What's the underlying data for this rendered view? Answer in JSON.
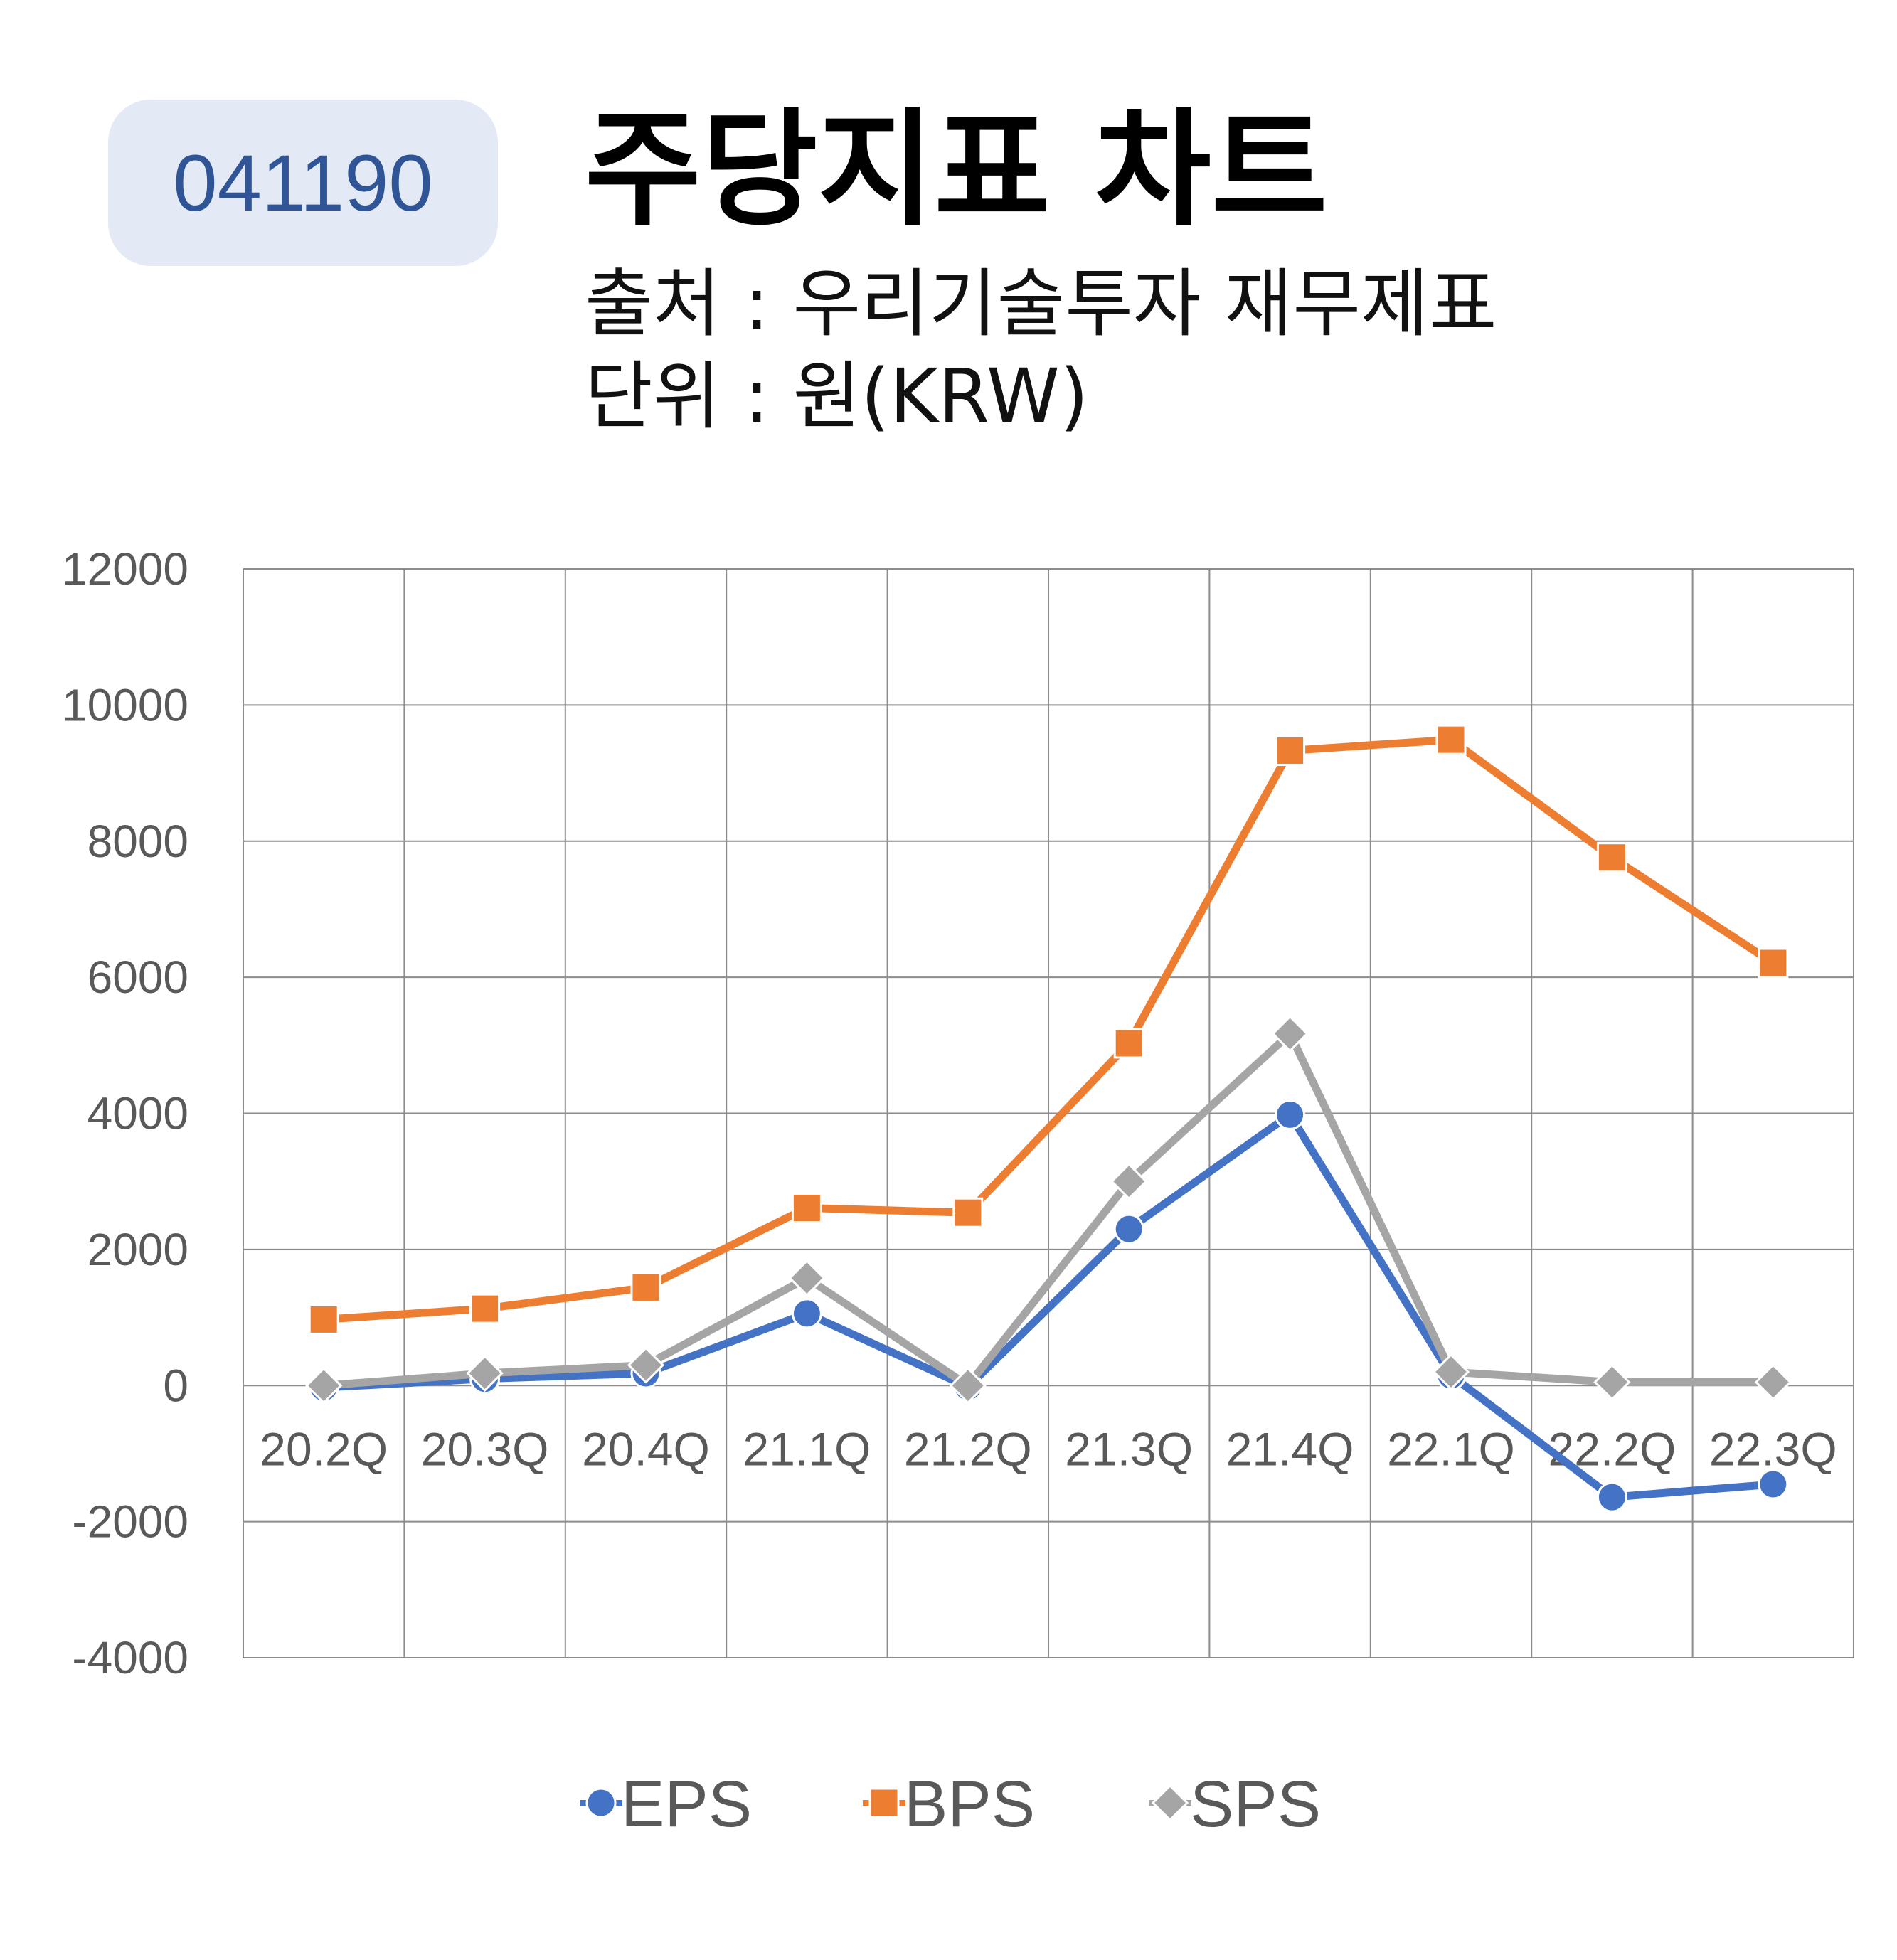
{
  "badge": {
    "code": "041190"
  },
  "header": {
    "title": "주당지표 차트",
    "source": "출처 : 우리기술투자 재무제표",
    "unit": "단위 : 원(KRW)"
  },
  "colors": {
    "EPS": "#4472c4",
    "BPS": "#ed7d31",
    "SPS": "#a5a5a5",
    "badge_bg": "#e3e9f5",
    "badge_text": "#2f5597"
  },
  "chart_data": {
    "type": "line",
    "categories": [
      "20.2Q",
      "20.3Q",
      "20.4Q",
      "21.1Q",
      "21.2Q",
      "21.3Q",
      "21.4Q",
      "22.1Q",
      "22.2Q",
      "22.3Q"
    ],
    "series": [
      {
        "name": "EPS",
        "marker": "circle",
        "values": [
          -30,
          100,
          180,
          1060,
          -20,
          2300,
          3980,
          150,
          -1640,
          -1450
        ]
      },
      {
        "name": "BPS",
        "marker": "square",
        "values": [
          970,
          1130,
          1440,
          2610,
          2540,
          5030,
          9330,
          9490,
          7760,
          6210
        ]
      },
      {
        "name": "SPS",
        "marker": "diamond",
        "values": [
          0,
          180,
          300,
          1580,
          0,
          3000,
          5170,
          200,
          50,
          50
        ]
      }
    ],
    "ylim": [
      -4000,
      12000
    ],
    "yticks": [
      12000,
      10000,
      8000,
      6000,
      4000,
      2000,
      0,
      -2000,
      -4000
    ],
    "grid": true,
    "legend_position": "bottom"
  }
}
